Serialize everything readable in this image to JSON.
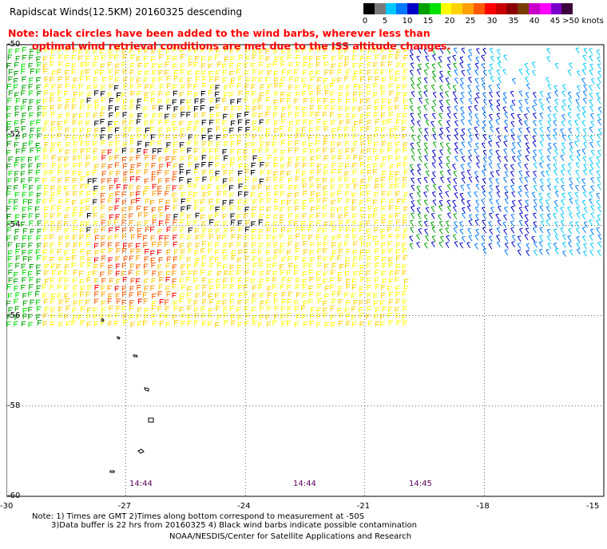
{
  "header": {
    "title": "Rapidscat Winds(12.5KM) 20160325 descending"
  },
  "notice": {
    "line1": "Note: black circles have been added to the wind barbs, wherever less than",
    "line2": "optimal wind retrieval conditions are met due to the ISS altitude changes."
  },
  "legend": {
    "labels": [
      "0",
      "5",
      "10",
      "15",
      "20",
      "25",
      "30",
      "35",
      "40",
      "45",
      ">50 knots"
    ],
    "colors": [
      "#000000",
      "#7a7a7a",
      "#00c8ff",
      "#0078ff",
      "#0000c8",
      "#00a000",
      "#00e000",
      "#ffff00",
      "#ffd200",
      "#ffa000",
      "#ff5a00",
      "#ff0000",
      "#c80000",
      "#8c0000",
      "#783c00",
      "#c800c8",
      "#ff00ff",
      "#7800c8",
      "#3c003c"
    ]
  },
  "map": {
    "lat_labels": [
      "-50",
      "-52",
      "-54",
      "-56",
      "-58",
      "-60"
    ],
    "lon_labels": [
      "-30",
      "-27",
      "-24",
      "-21",
      "-18",
      "-15"
    ],
    "time_labels": [
      "14:44",
      "14:44",
      "14:45"
    ],
    "lat_range": [
      -60,
      -50
    ],
    "lon_range": [
      -30,
      -15
    ]
  },
  "footer": {
    "note1": "Note: 1) Times are GMT 2)Times along bottom correspond to measurement at -50S",
    "note2": "3)Data buffer is 22 hrs from 20160325 4) Black wind barbs indicate possible contamination",
    "credit": "NOAA/NESDIS/Center for Satellite Applications and Research"
  }
}
